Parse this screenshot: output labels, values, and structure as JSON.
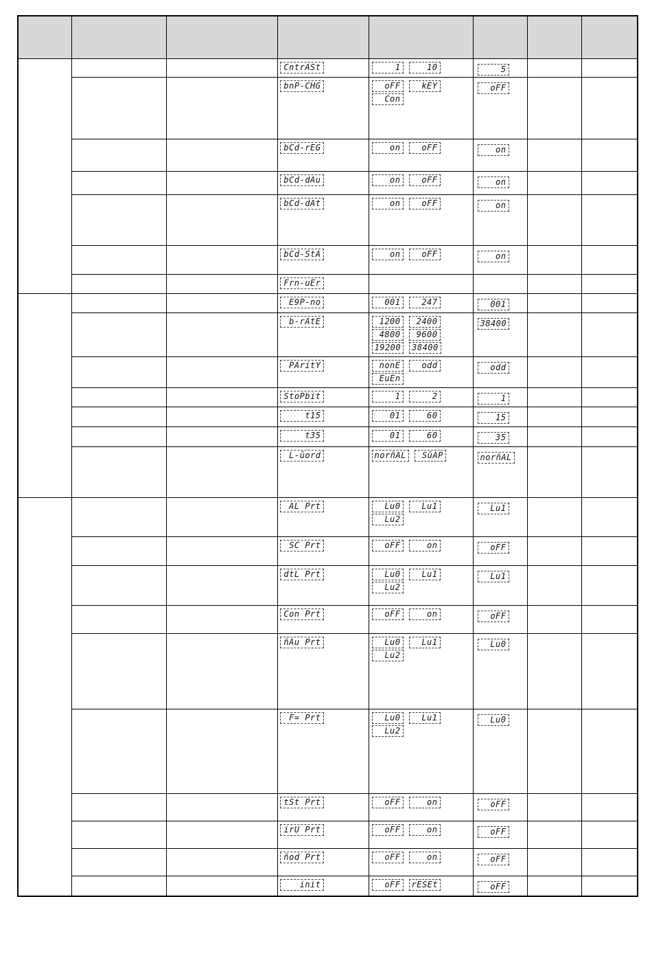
{
  "colors": {
    "header_bg": "#d8d8d8",
    "table_border": "#000000",
    "lcd_text": "#111111",
    "lcd_box_border": "#3a3a3a",
    "page_bg": "#ffffff"
  },
  "table": {
    "header": {
      "columns": [
        "",
        "",
        "",
        "",
        "",
        "",
        "",
        ""
      ]
    },
    "sections": [
      {
        "rows": [
          {
            "param": "CntrASt",
            "options": [
              "1",
              "10"
            ],
            "default": "5"
          },
          {
            "param": "bnP-CHG",
            "options": [
              "oFF",
              "kEY",
              "Con"
            ],
            "default": "oFF"
          },
          {
            "param": "bCd-rEG",
            "options": [
              "on",
              "oFF"
            ],
            "default": "on"
          },
          {
            "param": "bCd-dAu",
            "options": [
              "on",
              "oFF"
            ],
            "default": "on"
          },
          {
            "param": "bCd-dAt",
            "options": [
              "on",
              "oFF"
            ],
            "default": "on"
          },
          {
            "param": "bCd-StA",
            "options": [
              "on",
              "oFF"
            ],
            "default": "on"
          },
          {
            "param": "Frn-uEr",
            "options": [],
            "default": ""
          }
        ]
      },
      {
        "rows": [
          {
            "param": "E9P-no",
            "options": [
              "001",
              "247"
            ],
            "default": "001"
          },
          {
            "param": "b-rAtE",
            "options": [
              "1200",
              "2400",
              "4800",
              "9600",
              "19200",
              "38400"
            ],
            "default": "38400"
          },
          {
            "param": "PAritY",
            "options": [
              "nonE",
              "odd",
              "EuEn"
            ],
            "default": "odd"
          },
          {
            "param": "StoPbit",
            "options": [
              "1",
              "2"
            ],
            "default": "1"
          },
          {
            "param": "t15",
            "options": [
              "01",
              "60"
            ],
            "default": "15"
          },
          {
            "param": "t35",
            "options": [
              "01",
              "60"
            ],
            "default": "35"
          },
          {
            "param": "L-ūord",
            "options": [
              "norñAL",
              "SūAP"
            ],
            "default": "norñAL"
          }
        ]
      },
      {
        "rows": [
          {
            "param": "AL Prt",
            "options": [
              "Lu0",
              "Lu1",
              "Lu2"
            ],
            "default": "Lu1"
          },
          {
            "param": "SC Prt",
            "options": [
              "oFF",
              "on"
            ],
            "default": "oFF"
          },
          {
            "param": "dtL Prt",
            "options": [
              "Lu0",
              "Lu1",
              "Lu2"
            ],
            "default": "Lu1"
          },
          {
            "param": "Con Prt",
            "options": [
              "oFF",
              "on"
            ],
            "default": "oFF"
          },
          {
            "param": "ñAu Prt",
            "options": [
              "Lu0",
              "Lu1",
              "Lu2"
            ],
            "default": "Lu0"
          },
          {
            "param": "F= Prt",
            "options": [
              "Lu0",
              "Lu1",
              "Lu2"
            ],
            "default": "Lu0"
          },
          {
            "param": "tSt Prt",
            "options": [
              "oFF",
              "on"
            ],
            "default": "oFF"
          },
          {
            "param": "irU Prt",
            "options": [
              "oFF",
              "on"
            ],
            "default": "oFF"
          },
          {
            "param": "ñod Prt",
            "options": [
              "oFF",
              "on"
            ],
            "default": "oFF"
          },
          {
            "param": "init",
            "options": [
              "oFF",
              "rESEt"
            ],
            "default": "oFF"
          }
        ]
      }
    ]
  }
}
